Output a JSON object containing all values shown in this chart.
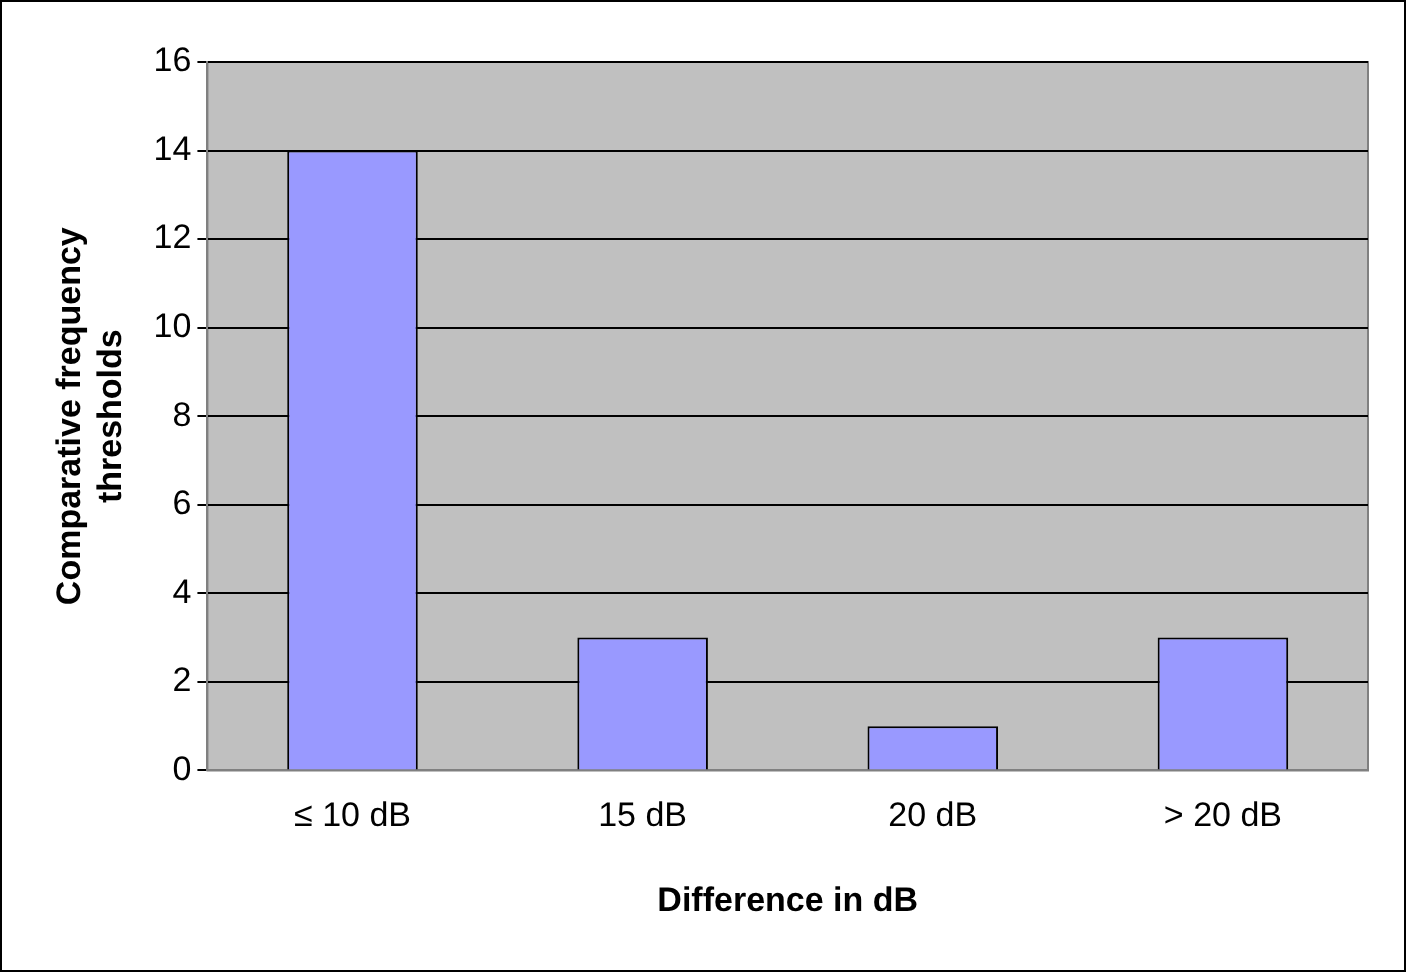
{
  "chart_data": {
    "type": "bar",
    "xlabel": "Difference in dB",
    "ylabel": "Comparative frequency thresholds",
    "categories": [
      "≤ 10 dB",
      "15 dB",
      "20 dB",
      "> 20 dB"
    ],
    "values": [
      14,
      3,
      1,
      3
    ],
    "color": "#9999ff",
    "ylim": [
      0,
      16
    ],
    "yticks": [
      0,
      2,
      4,
      6,
      8,
      10,
      12,
      14,
      16
    ],
    "grid": "y",
    "legend": false
  }
}
